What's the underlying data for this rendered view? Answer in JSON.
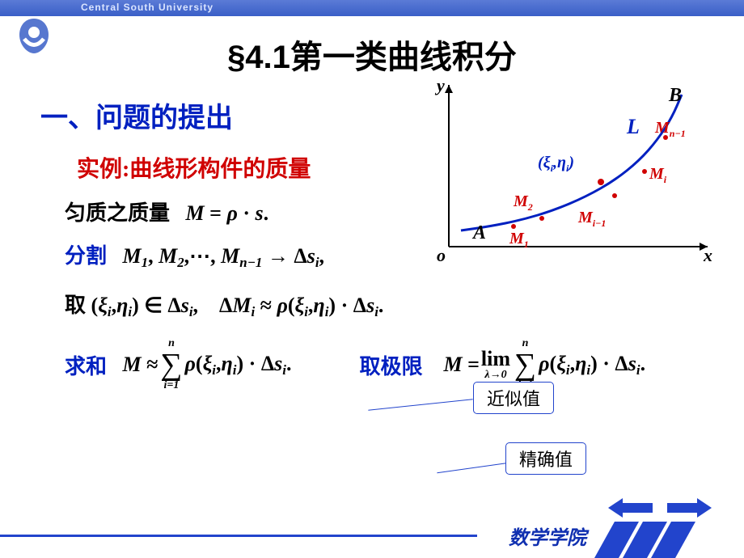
{
  "header": {
    "university": "Central South University"
  },
  "title": "§4.1第一类曲线积分",
  "section1": "一、问题的提出",
  "example": "实例:曲线形构件的质量",
  "uniform": {
    "label": "匀质之质量",
    "formula": "M = ρ · s."
  },
  "partition": {
    "label": "分割",
    "formula_seq": "M₁, M₂, ⋯, M_{n−1} → Δsᵢ,"
  },
  "pick": {
    "label": "取",
    "formula_in": "(ξᵢ, ηᵢ) ∈ Δsᵢ,",
    "formula_dm": "ΔMᵢ ≈ ρ(ξᵢ, ηᵢ) · Δsᵢ."
  },
  "sum": {
    "label": "求和",
    "lhs": "M ≈",
    "sum_top": "n",
    "sum_bot": "i=1",
    "body": "ρ(ξᵢ, ηᵢ) · Δsᵢ."
  },
  "limit": {
    "label": "取极限",
    "lhs": "M =",
    "lim_word": "lim",
    "lim_sub": "λ→0",
    "sum_top": "n",
    "sum_bot": "i=1",
    "body": "ρ(ξᵢ, ηᵢ) · Δsᵢ."
  },
  "callouts": {
    "approx": "近似值",
    "exact": "精确值"
  },
  "graph": {
    "axis_x": "x",
    "axis_y": "y",
    "origin": "o",
    "curve_label": "L",
    "A": "A",
    "B": "B",
    "M1": "M₁",
    "M2": "M₂",
    "Mi1": "M_{i−1}",
    "Mi": "Mᵢ",
    "Mn1": "M_{n−1}",
    "xi": "(ξᵢ, ηᵢ)",
    "colors": {
      "axis": "#000000",
      "curve": "#0020c0",
      "curve_label": "#0020c0",
      "point": "#d00000",
      "M_label": "#d00000",
      "AB": "#000000"
    },
    "curve_points": [
      [
        35,
        190
      ],
      [
        70,
        185
      ],
      [
        110,
        177
      ],
      [
        150,
        165
      ],
      [
        190,
        148
      ],
      [
        225,
        128
      ],
      [
        255,
        104
      ],
      [
        278,
        78
      ],
      [
        296,
        50
      ],
      [
        308,
        22
      ]
    ]
  },
  "footer": {
    "dept": "数学学院"
  },
  "colors": {
    "brand": "#2244cc",
    "red": "#d00000",
    "blue": "#0020c0"
  }
}
